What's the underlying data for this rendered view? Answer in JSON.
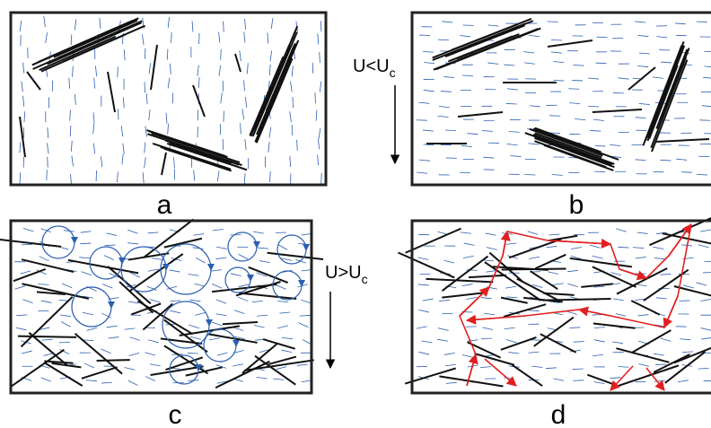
{
  "panels": [
    {
      "label": "a"
    },
    {
      "label": "b",
      "flow": {
        "text": "U<U",
        "sub": "c"
      }
    },
    {
      "label": "c",
      "flow": {
        "text": "U>U",
        "sub": "c"
      }
    },
    {
      "label": "d"
    }
  ]
}
